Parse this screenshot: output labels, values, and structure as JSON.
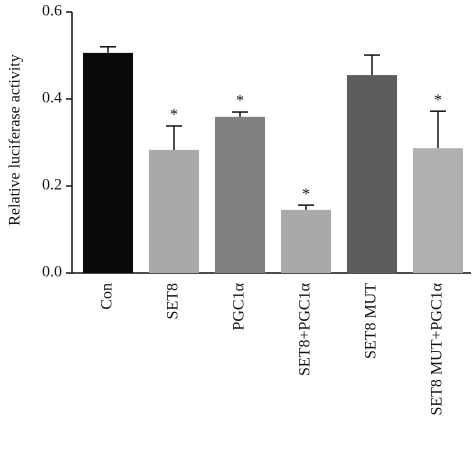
{
  "chart_data": {
    "type": "bar",
    "y_label": "Relative luciferase activity",
    "categories": [
      "Con",
      "SET8",
      "PGC1α",
      "SET8+PGC1α",
      "SET8 MUT",
      "SET8 MUT+PGC1α"
    ],
    "values": [
      0.506,
      0.283,
      0.359,
      0.145,
      0.455,
      0.287
    ],
    "errors": [
      0.014,
      0.055,
      0.011,
      0.011,
      0.046,
      0.085
    ],
    "colors": [
      "#0a0a0a",
      "#a9a9a9",
      "#808080",
      "#a9a9a9",
      "#5c5c5c",
      "#b0b0b0"
    ],
    "significance": [
      null,
      "*",
      "*",
      "*",
      null,
      "*"
    ],
    "ylim": [
      0,
      0.6
    ],
    "yticks": [
      {
        "value": 0,
        "label": "0.0"
      },
      0.2,
      0.4,
      0.6
    ]
  }
}
